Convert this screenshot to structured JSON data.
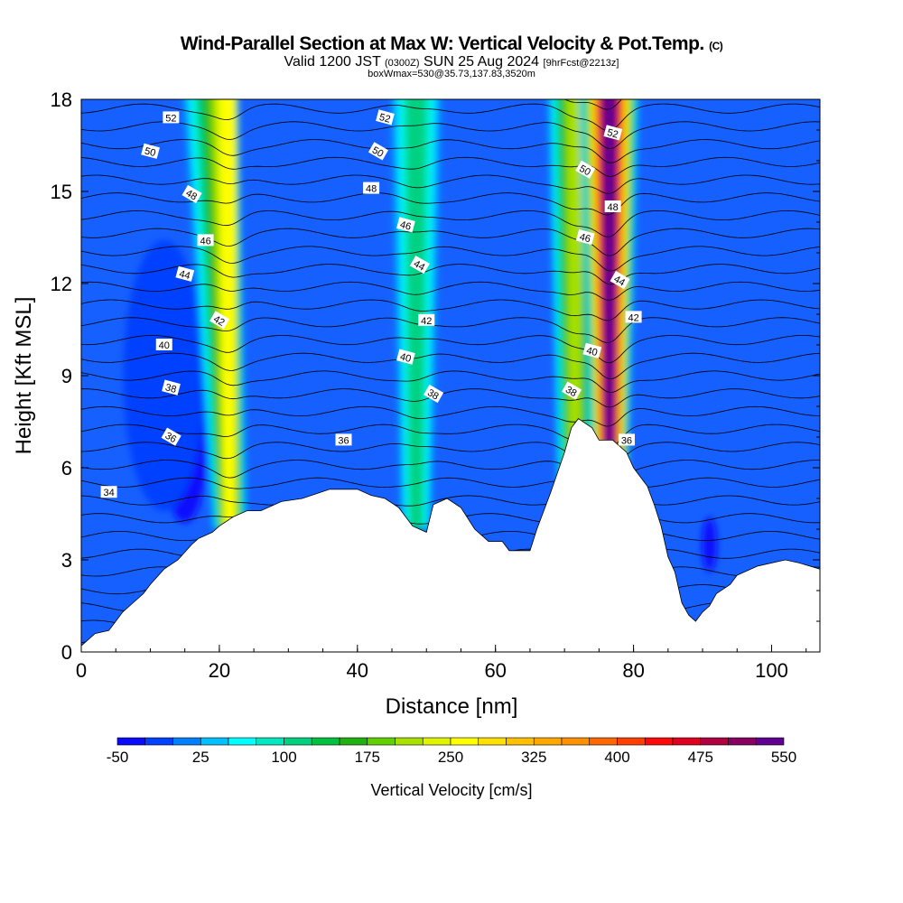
{
  "title": "Wind-Parallel Section at Max W: Vertical Velocity & Pot.Temp.",
  "title_mark": "(C)",
  "subtitle_a": "Valid 1200 JST",
  "subtitle_b": "(0300Z)",
  "subtitle_c": "SUN 25 Aug 2024",
  "subtitle_d": "[9hrFcst@2213z]",
  "subtitle2": "boxWmax=530@35.73,137.83,3520m",
  "chart_data": {
    "type": "heatmap",
    "xlabel": "Distance [nm]",
    "ylabel": "Height [Kft MSL]",
    "xlim": [
      0,
      107
    ],
    "ylim": [
      0,
      18
    ],
    "xticks": [
      "0",
      "20",
      "40",
      "60",
      "80",
      "100"
    ],
    "yticks": [
      "0",
      "3",
      "6",
      "9",
      "12",
      "15",
      "18"
    ],
    "colorbar": {
      "label": "Vertical Velocity [cm/s]",
      "ticks": [
        "-50",
        "25",
        "100",
        "175",
        "250",
        "325",
        "400",
        "475",
        "550"
      ],
      "range": [
        -50,
        550
      ],
      "colors": [
        "#0a0aff",
        "#0040ff",
        "#0080ff",
        "#00c0ff",
        "#00ffff",
        "#00e8c0",
        "#00d080",
        "#00c040",
        "#20b010",
        "#60d000",
        "#a8e000",
        "#e0f400",
        "#ffff00",
        "#ffe000",
        "#ffc000",
        "#ffa800",
        "#ff9000",
        "#ff6800",
        "#ff4000",
        "#ff0a0a",
        "#e00020",
        "#b00040",
        "#880060",
        "#600090"
      ]
    },
    "theta_label_values": [
      {
        "text": "52",
        "x": 13,
        "y": 17.4
      },
      {
        "text": "50",
        "x": 10,
        "y": 16.3
      },
      {
        "text": "48",
        "x": 16,
        "y": 14.9
      },
      {
        "text": "46",
        "x": 18,
        "y": 13.4
      },
      {
        "text": "44",
        "x": 15,
        "y": 12.3
      },
      {
        "text": "42",
        "x": 20,
        "y": 10.8
      },
      {
        "text": "40",
        "x": 12,
        "y": 10.0
      },
      {
        "text": "38",
        "x": 13,
        "y": 8.6
      },
      {
        "text": "36",
        "x": 13,
        "y": 7.0
      },
      {
        "text": "34",
        "x": 4,
        "y": 5.2
      },
      {
        "text": "52",
        "x": 44,
        "y": 17.4
      },
      {
        "text": "50",
        "x": 43,
        "y": 16.3
      },
      {
        "text": "48",
        "x": 42,
        "y": 15.1
      },
      {
        "text": "46",
        "x": 47,
        "y": 13.9
      },
      {
        "text": "44",
        "x": 49,
        "y": 12.6
      },
      {
        "text": "42",
        "x": 50,
        "y": 10.8
      },
      {
        "text": "40",
        "x": 47,
        "y": 9.6
      },
      {
        "text": "38",
        "x": 51,
        "y": 8.4
      },
      {
        "text": "36",
        "x": 38,
        "y": 6.9
      },
      {
        "text": "52",
        "x": 77,
        "y": 16.9
      },
      {
        "text": "50",
        "x": 73,
        "y": 15.7
      },
      {
        "text": "48",
        "x": 77,
        "y": 14.5
      },
      {
        "text": "46",
        "x": 73,
        "y": 13.5
      },
      {
        "text": "44",
        "x": 78,
        "y": 12.1
      },
      {
        "text": "42",
        "x": 80,
        "y": 10.9
      },
      {
        "text": "40",
        "x": 74,
        "y": 9.8
      },
      {
        "text": "38",
        "x": 71,
        "y": 8.5
      },
      {
        "text": "36",
        "x": 79,
        "y": 6.9
      }
    ],
    "terrain": [
      [
        0,
        0.2
      ],
      [
        2,
        0.6
      ],
      [
        4,
        0.7
      ],
      [
        5,
        1.0
      ],
      [
        6,
        1.3
      ],
      [
        7,
        1.5
      ],
      [
        9,
        1.9
      ],
      [
        10,
        2.2
      ],
      [
        12,
        2.7
      ],
      [
        14,
        3.0
      ],
      [
        16,
        3.5
      ],
      [
        17,
        3.7
      ],
      [
        19,
        3.9
      ],
      [
        20,
        4.1
      ],
      [
        22,
        4.4
      ],
      [
        24,
        4.6
      ],
      [
        26,
        4.6
      ],
      [
        29,
        4.9
      ],
      [
        32,
        5.0
      ],
      [
        36,
        5.3
      ],
      [
        40,
        5.3
      ],
      [
        42,
        5.1
      ],
      [
        44,
        5.0
      ],
      [
        46,
        4.7
      ],
      [
        48,
        4.1
      ],
      [
        50,
        3.9
      ],
      [
        51,
        4.8
      ],
      [
        53,
        5.0
      ],
      [
        55,
        4.7
      ],
      [
        57,
        4.0
      ],
      [
        59,
        3.6
      ],
      [
        61,
        3.6
      ],
      [
        62,
        3.3
      ],
      [
        65,
        3.3
      ],
      [
        66,
        4.0
      ],
      [
        68,
        5.2
      ],
      [
        70,
        6.5
      ],
      [
        71,
        7.3
      ],
      [
        72,
        7.6
      ],
      [
        74,
        7.3
      ],
      [
        75,
        6.9
      ],
      [
        77,
        6.9
      ],
      [
        79,
        6.5
      ],
      [
        80,
        6.0
      ],
      [
        81,
        5.7
      ],
      [
        82,
        5.4
      ],
      [
        83,
        4.8
      ],
      [
        84,
        4.1
      ],
      [
        85,
        3.1
      ],
      [
        86,
        2.6
      ],
      [
        87,
        1.6
      ],
      [
        88,
        1.2
      ],
      [
        89,
        1.0
      ],
      [
        90,
        1.3
      ],
      [
        91,
        1.5
      ],
      [
        92,
        1.9
      ],
      [
        94,
        2.2
      ],
      [
        95,
        2.5
      ],
      [
        98,
        2.8
      ],
      [
        102,
        3.0
      ],
      [
        104,
        2.9
      ],
      [
        107,
        2.7
      ]
    ],
    "updrafts": [
      {
        "x": 21.5,
        "peak_cm_s": 250
      },
      {
        "x": 48.5,
        "peak_cm_s": 100
      },
      {
        "x": 71.5,
        "peak_cm_s": 200
      },
      {
        "x": 76.5,
        "peak_cm_s": 530
      }
    ]
  }
}
